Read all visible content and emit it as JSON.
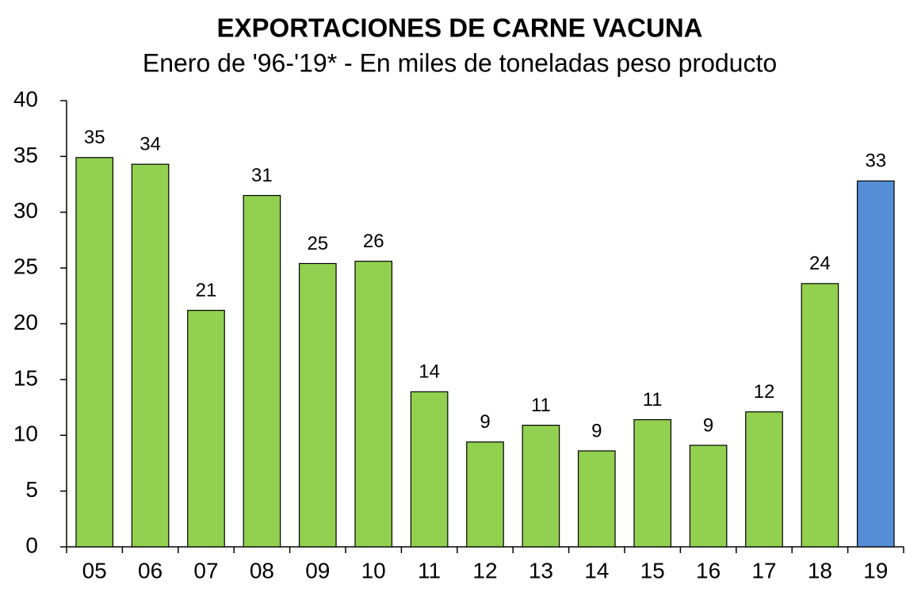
{
  "chart_data": {
    "type": "bar",
    "title": "EXPORTACIONES DE CARNE VACUNA",
    "subtitle": "Enero de '96-'19* - En miles de toneladas peso producto",
    "categories": [
      "05",
      "06",
      "07",
      "08",
      "09",
      "10",
      "11",
      "12",
      "13",
      "14",
      "15",
      "16",
      "17",
      "18",
      "19"
    ],
    "values": [
      34.9,
      34.3,
      21.2,
      31.5,
      25.4,
      25.6,
      13.9,
      9.4,
      10.9,
      8.6,
      11.4,
      9.1,
      12.1,
      23.6,
      32.8
    ],
    "value_labels": [
      "35",
      "34",
      "21",
      "31",
      "25",
      "26",
      "14",
      "9",
      "11",
      "9",
      "11",
      "9",
      "12",
      "24",
      "33"
    ],
    "colors": [
      "#92d050",
      "#92d050",
      "#92d050",
      "#92d050",
      "#92d050",
      "#92d050",
      "#92d050",
      "#92d050",
      "#92d050",
      "#92d050",
      "#92d050",
      "#92d050",
      "#92d050",
      "#92d050",
      "#558ed5"
    ],
    "ylim": [
      0,
      40
    ],
    "yticks": [
      0,
      5,
      10,
      15,
      20,
      25,
      30,
      35,
      40
    ],
    "grid": false
  }
}
